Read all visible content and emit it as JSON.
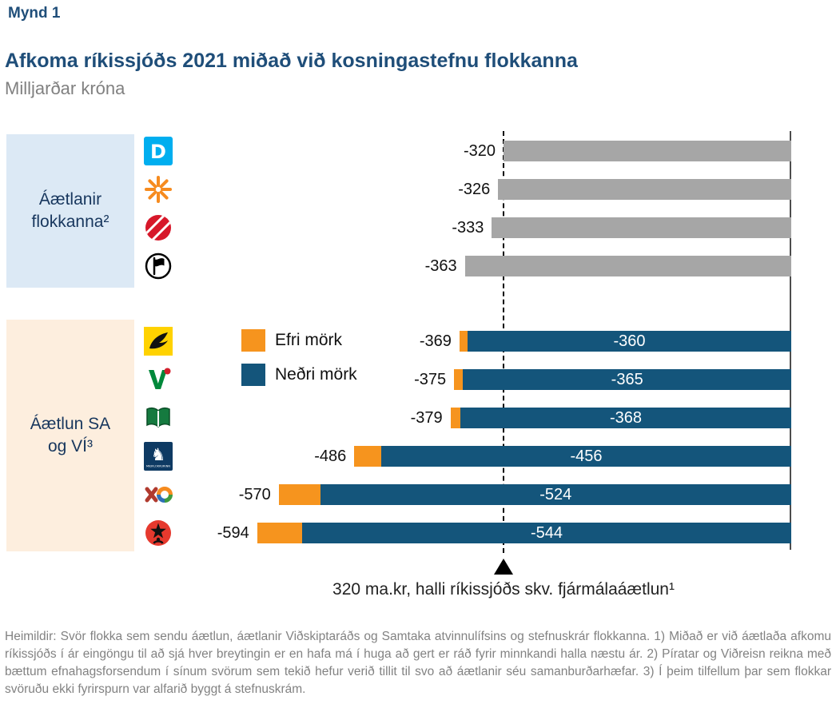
{
  "figure_label": "Mynd 1",
  "title": "Afkoma ríkissjóðs 2021 miðað við kosningastefnu flokkanna",
  "subtitle": "Milljarðar króna",
  "colors": {
    "title_navy": "#1F4E79",
    "bar_gray": "#A6A6A6",
    "bar_blue": "#14557B",
    "bar_orange": "#F6941E",
    "group1_bg": "#DCE9F5",
    "group2_bg": "#FDEEDE",
    "footnote_gray": "#828282"
  },
  "chart_data": {
    "type": "bar",
    "orientation": "horizontal",
    "unit": "Milljarðar króna",
    "xlim": [
      -650,
      0
    ],
    "zero_axis_side": "right",
    "grid": false,
    "reference_line": {
      "value": -320,
      "style": "dashed",
      "marker": "triangle-up",
      "label": "320 ma.kr, halli ríkissjóðs skv. fjármálaáætlun¹"
    },
    "legend": [
      {
        "label": "Efri mörk",
        "color": "#F6941E"
      },
      {
        "label": "Neðri mörk",
        "color": "#14557B"
      }
    ],
    "groups": [
      {
        "label": "Áætlanir flokkanna²",
        "bar_color": "#A6A6A6",
        "bars": [
          {
            "logo": "party-logo-blue-d-icon",
            "value": -320
          },
          {
            "logo": "party-logo-orange-asterisk-icon",
            "value": -326
          },
          {
            "logo": "party-logo-red-striped-circle-icon",
            "value": -333
          },
          {
            "logo": "party-logo-pirate-flag-icon",
            "value": -363
          }
        ]
      },
      {
        "label": "Áætlun SA og VÍ³",
        "bar_color": "#14557B",
        "bars": [
          {
            "logo": "party-logo-yellow-bird-icon",
            "upper": -369,
            "lower": -360
          },
          {
            "logo": "party-logo-green-v-icon",
            "upper": -375,
            "lower": -365
          },
          {
            "logo": "party-logo-green-book-icon",
            "upper": -379,
            "lower": -368
          },
          {
            "logo": "party-logo-midflokkurinn-lion-icon",
            "upper": -486,
            "lower": -456
          },
          {
            "logo": "party-logo-xo-icon",
            "upper": -570,
            "lower": -524
          },
          {
            "logo": "party-logo-red-star-circle-icon",
            "upper": -594,
            "lower": -544
          }
        ]
      }
    ]
  },
  "footnote": "Heimildir: Svör flokka sem sendu áætlun, áætlanir Viðskiptaráðs og Samtaka atvinnulífsins og stefnuskrár flokkanna. 1) Miðað er við áætlaða afkomu ríkissjóðs í ár eingöngu til að sjá hver breytingin er en hafa má í huga að gert er ráð fyrir minnkandi halla næstu ár. 2) Píratar og Viðreisn reikna með bættum efnahagsforsendum í sínum svörum sem tekið hefur verið tillit til svo að áætlanir séu samanburðarhæfar. 3) Í þeim tilfellum þar sem flokkar svöruðu ekki fyrirspurn var alfarið byggt á stefnuskrám."
}
